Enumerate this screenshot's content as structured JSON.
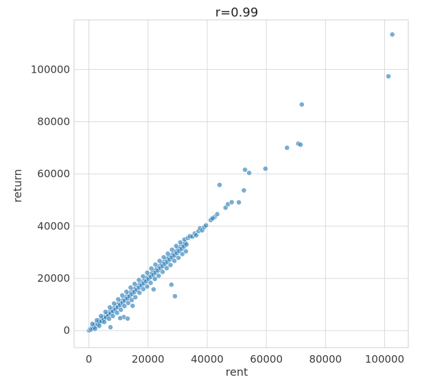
{
  "chart_data": {
    "type": "scatter",
    "title": "r=0.99",
    "xlabel": "rent",
    "ylabel": "return",
    "xlim": [
      -5000,
      108000
    ],
    "ylim": [
      -6500,
      119000
    ],
    "xticks": [
      0,
      20000,
      40000,
      60000,
      80000,
      100000
    ],
    "yticks": [
      0,
      20000,
      40000,
      60000,
      80000,
      100000
    ],
    "grid": true,
    "point_color": "#1f77b4",
    "series": [
      {
        "values": [
          {
            "x": 0,
            "y": 0
          },
          {
            "x": 300,
            "y": 200
          },
          {
            "x": 500,
            "y": 700
          },
          {
            "x": 800,
            "y": 400
          },
          {
            "x": 1000,
            "y": 1300
          },
          {
            "x": 1200,
            "y": 900
          },
          {
            "x": 1500,
            "y": 1800
          },
          {
            "x": 1800,
            "y": 1400
          },
          {
            "x": 2000,
            "y": 2300
          },
          {
            "x": 2300,
            "y": 1900
          },
          {
            "x": 2600,
            "y": 2800
          },
          {
            "x": 3000,
            "y": 2500
          },
          {
            "x": 3300,
            "y": 3400
          },
          {
            "x": 3600,
            "y": 3000
          },
          {
            "x": 4000,
            "y": 4200
          },
          {
            "x": 4300,
            "y": 3600
          },
          {
            "x": 4700,
            "y": 4900
          },
          {
            "x": 5000,
            "y": 4400
          },
          {
            "x": 5400,
            "y": 5600
          },
          {
            "x": 5800,
            "y": 5100
          },
          {
            "x": 6200,
            "y": 6400
          },
          {
            "x": 6600,
            "y": 5900
          },
          {
            "x": 7000,
            "y": 7200
          },
          {
            "x": 7400,
            "y": 6600
          },
          {
            "x": 7800,
            "y": 8000
          },
          {
            "x": 8200,
            "y": 7400
          },
          {
            "x": 8600,
            "y": 8900
          },
          {
            "x": 9000,
            "y": 8100
          },
          {
            "x": 9400,
            "y": 9700
          },
          {
            "x": 9800,
            "y": 9000
          },
          {
            "x": 10200,
            "y": 10500
          },
          {
            "x": 10600,
            "y": 9800
          },
          {
            "x": 11000,
            "y": 11400
          },
          {
            "x": 11400,
            "y": 10600
          },
          {
            "x": 11800,
            "y": 12200
          },
          {
            "x": 12200,
            "y": 11500
          },
          {
            "x": 12600,
            "y": 13000
          },
          {
            "x": 13000,
            "y": 12300
          },
          {
            "x": 13400,
            "y": 13900
          },
          {
            "x": 13800,
            "y": 13100
          },
          {
            "x": 14200,
            "y": 14700
          },
          {
            "x": 14600,
            "y": 14000
          },
          {
            "x": 15000,
            "y": 15600
          },
          {
            "x": 15400,
            "y": 14800
          },
          {
            "x": 15800,
            "y": 16400
          },
          {
            "x": 16200,
            "y": 15600
          },
          {
            "x": 16600,
            "y": 17200
          },
          {
            "x": 17000,
            "y": 16500
          },
          {
            "x": 17400,
            "y": 18000
          },
          {
            "x": 17800,
            "y": 17300
          },
          {
            "x": 18200,
            "y": 18900
          },
          {
            "x": 18600,
            "y": 18100
          },
          {
            "x": 19000,
            "y": 19700
          },
          {
            "x": 19400,
            "y": 18900
          },
          {
            "x": 19800,
            "y": 20500
          },
          {
            "x": 20200,
            "y": 19800
          },
          {
            "x": 20600,
            "y": 21300
          },
          {
            "x": 21000,
            "y": 20600
          },
          {
            "x": 21400,
            "y": 22200
          },
          {
            "x": 21800,
            "y": 21400
          },
          {
            "x": 22200,
            "y": 23000
          },
          {
            "x": 22600,
            "y": 22200
          },
          {
            "x": 23000,
            "y": 23800
          },
          {
            "x": 23400,
            "y": 23000
          },
          {
            "x": 23800,
            "y": 24700
          },
          {
            "x": 24200,
            "y": 23900
          },
          {
            "x": 24600,
            "y": 25500
          },
          {
            "x": 25000,
            "y": 24700
          },
          {
            "x": 25400,
            "y": 26300
          },
          {
            "x": 25800,
            "y": 25500
          },
          {
            "x": 26200,
            "y": 27200
          },
          {
            "x": 26600,
            "y": 26300
          },
          {
            "x": 27000,
            "y": 28000
          },
          {
            "x": 27400,
            "y": 27200
          },
          {
            "x": 27800,
            "y": 28800
          },
          {
            "x": 28200,
            "y": 28000
          },
          {
            "x": 28600,
            "y": 29600
          },
          {
            "x": 29000,
            "y": 28800
          },
          {
            "x": 29400,
            "y": 30400
          },
          {
            "x": 29800,
            "y": 29700
          },
          {
            "x": 30200,
            "y": 31300
          },
          {
            "x": 30600,
            "y": 30500
          },
          {
            "x": 31000,
            "y": 32100
          },
          {
            "x": 31400,
            "y": 31300
          },
          {
            "x": 31800,
            "y": 32900
          },
          {
            "x": 32200,
            "y": 32200
          },
          {
            "x": 32600,
            "y": 33700
          },
          {
            "x": 33000,
            "y": 33000
          },
          {
            "x": 2100,
            "y": 700
          },
          {
            "x": 3500,
            "y": 1800
          },
          {
            "x": 5200,
            "y": 3300
          },
          {
            "x": 6800,
            "y": 4500
          },
          {
            "x": 8100,
            "y": 5600
          },
          {
            "x": 9500,
            "y": 6800
          },
          {
            "x": 10800,
            "y": 8000
          },
          {
            "x": 12000,
            "y": 9400
          },
          {
            "x": 13300,
            "y": 10600
          },
          {
            "x": 14500,
            "y": 11700
          },
          {
            "x": 15700,
            "y": 12800
          },
          {
            "x": 17100,
            "y": 14500
          },
          {
            "x": 18400,
            "y": 15900
          },
          {
            "x": 19700,
            "y": 16900
          },
          {
            "x": 20900,
            "y": 18300
          },
          {
            "x": 22300,
            "y": 19800
          },
          {
            "x": 23600,
            "y": 21000
          },
          {
            "x": 24900,
            "y": 22500
          },
          {
            "x": 26300,
            "y": 23900
          },
          {
            "x": 27600,
            "y": 25100
          },
          {
            "x": 28900,
            "y": 26700
          },
          {
            "x": 30300,
            "y": 27900
          },
          {
            "x": 31600,
            "y": 29300
          },
          {
            "x": 32800,
            "y": 30400
          },
          {
            "x": 1200,
            "y": 2600
          },
          {
            "x": 2700,
            "y": 4000
          },
          {
            "x": 4100,
            "y": 5600
          },
          {
            "x": 5600,
            "y": 7200
          },
          {
            "x": 7100,
            "y": 8900
          },
          {
            "x": 8500,
            "y": 10400
          },
          {
            "x": 9900,
            "y": 12000
          },
          {
            "x": 11300,
            "y": 13500
          },
          {
            "x": 12700,
            "y": 14900
          },
          {
            "x": 14100,
            "y": 16500
          },
          {
            "x": 15500,
            "y": 17900
          },
          {
            "x": 16900,
            "y": 19400
          },
          {
            "x": 18300,
            "y": 20800
          },
          {
            "x": 19700,
            "y": 22200
          },
          {
            "x": 21100,
            "y": 23800
          },
          {
            "x": 22500,
            "y": 25300
          },
          {
            "x": 23900,
            "y": 26700
          },
          {
            "x": 25300,
            "y": 28100
          },
          {
            "x": 26700,
            "y": 29500
          },
          {
            "x": 28100,
            "y": 31000
          },
          {
            "x": 29500,
            "y": 32400
          },
          {
            "x": 30900,
            "y": 33800
          },
          {
            "x": 32300,
            "y": 34900
          },
          {
            "x": 11800,
            "y": 5200
          },
          {
            "x": 13100,
            "y": 4600
          },
          {
            "x": 10600,
            "y": 4800
          },
          {
            "x": 21900,
            "y": 15800
          },
          {
            "x": 27900,
            "y": 17600
          },
          {
            "x": 29100,
            "y": 13200
          },
          {
            "x": 7300,
            "y": 1300
          },
          {
            "x": 14800,
            "y": 9500
          },
          {
            "x": 33500,
            "y": 35500
          },
          {
            "x": 34200,
            "y": 36200
          },
          {
            "x": 35000,
            "y": 36000
          },
          {
            "x": 35800,
            "y": 37200
          },
          {
            "x": 36300,
            "y": 36500
          },
          {
            "x": 37100,
            "y": 38100
          },
          {
            "x": 37600,
            "y": 39200
          },
          {
            "x": 38300,
            "y": 38400
          },
          {
            "x": 39000,
            "y": 39600
          },
          {
            "x": 39600,
            "y": 40300
          },
          {
            "x": 41200,
            "y": 42300
          },
          {
            "x": 42500,
            "y": 43500
          },
          {
            "x": 43400,
            "y": 44600
          },
          {
            "x": 41800,
            "y": 43000
          },
          {
            "x": 44200,
            "y": 55800
          },
          {
            "x": 46200,
            "y": 47100
          },
          {
            "x": 47000,
            "y": 48400
          },
          {
            "x": 48300,
            "y": 49200
          },
          {
            "x": 50700,
            "y": 49100
          },
          {
            "x": 52400,
            "y": 53700
          },
          {
            "x": 52800,
            "y": 61600
          },
          {
            "x": 54200,
            "y": 60400
          },
          {
            "x": 59700,
            "y": 62000
          },
          {
            "x": 67000,
            "y": 70000
          },
          {
            "x": 70800,
            "y": 71600
          },
          {
            "x": 71600,
            "y": 71200
          },
          {
            "x": 72000,
            "y": 86600
          },
          {
            "x": 101300,
            "y": 97400
          },
          {
            "x": 102600,
            "y": 113400
          }
        ]
      }
    ]
  }
}
